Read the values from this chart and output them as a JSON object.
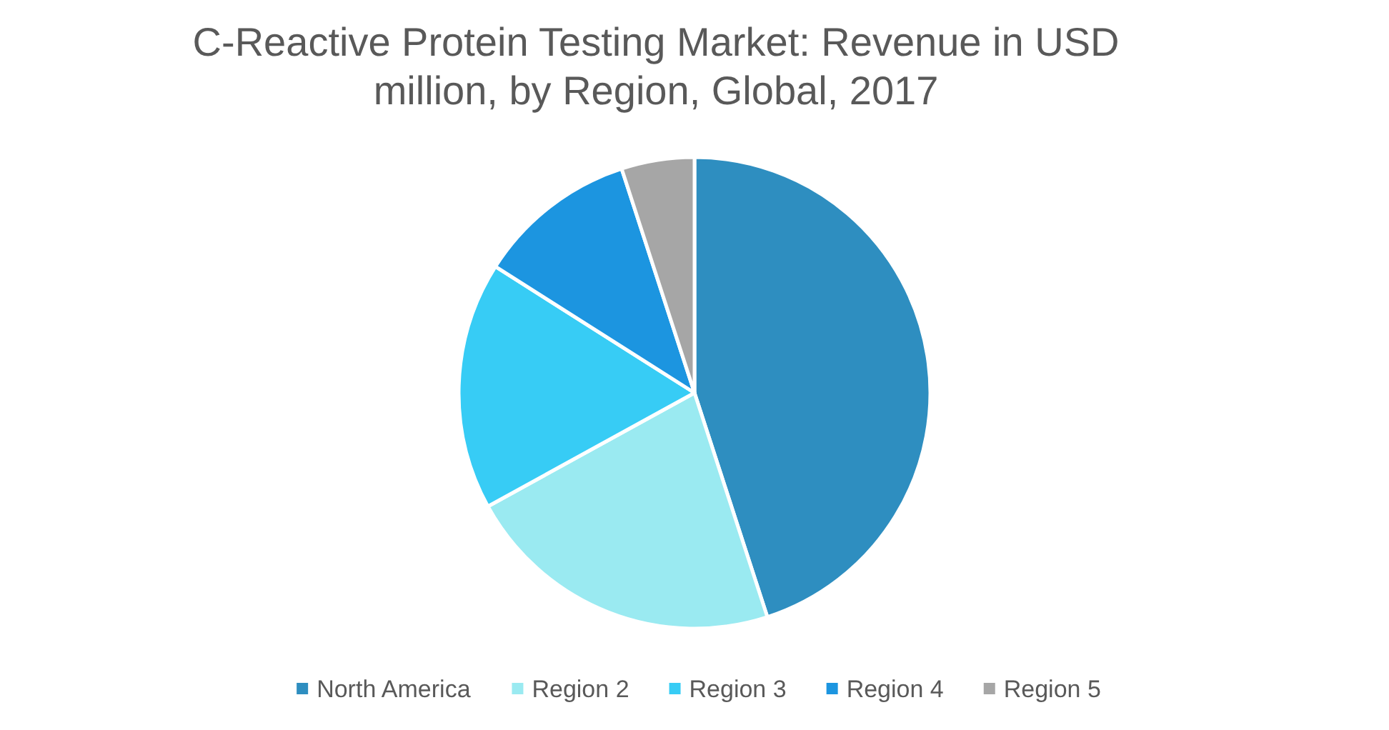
{
  "chart_data": {
    "type": "pie",
    "title": "C-Reactive Protein Testing Market: Revenue in USD million, by Region, Global, 2017",
    "categories": [
      "North America",
      "Region 2",
      "Region 3",
      "Region 4",
      "Region 5"
    ],
    "values": [
      45,
      22,
      17,
      11,
      5
    ],
    "colors": [
      "#2e8ec0",
      "#9aeaf1",
      "#37ccf5",
      "#1c95e0",
      "#a6a6a6"
    ],
    "legend": "bottom"
  }
}
